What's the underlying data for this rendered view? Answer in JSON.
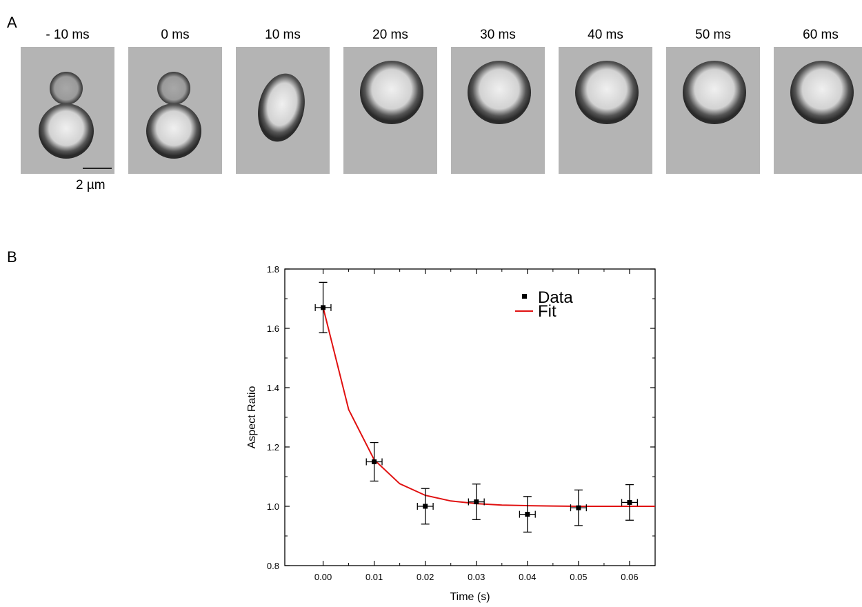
{
  "panels": {
    "a": "A",
    "b": "B"
  },
  "frames": [
    {
      "time": "- 10 ms",
      "state": "doublet"
    },
    {
      "time": "0 ms",
      "state": "doublet"
    },
    {
      "time": "10 ms",
      "state": "elongated"
    },
    {
      "time": "20 ms",
      "state": "sphere"
    },
    {
      "time": "30 ms",
      "state": "sphere"
    },
    {
      "time": "40 ms",
      "state": "sphere"
    },
    {
      "time": "50 ms",
      "state": "sphere"
    },
    {
      "time": "60 ms",
      "state": "sphere"
    }
  ],
  "scale_bar": {
    "label": "2 µm"
  },
  "chart_data": {
    "type": "scatter",
    "xlabel": "Time (s)",
    "ylabel": "Aspect Ratio",
    "xlim": [
      -0.0075,
      0.065
    ],
    "ylim": [
      0.8,
      1.8
    ],
    "x_ticks": [
      "0.00",
      "0.01",
      "0.02",
      "0.03",
      "0.04",
      "0.05",
      "0.06"
    ],
    "y_ticks": [
      "0.8",
      "1.0",
      "1.2",
      "1.4",
      "1.6",
      "1.8"
    ],
    "legend": {
      "position": "top-right",
      "entries": [
        "Data",
        "Fit"
      ]
    },
    "colors": {
      "data": "#000000",
      "fit": "#e01010"
    },
    "series": [
      {
        "name": "Data",
        "type": "scatter",
        "x": [
          0.0,
          0.01,
          0.02,
          0.03,
          0.04,
          0.05,
          0.06
        ],
        "y": [
          1.67,
          1.15,
          1.0,
          1.015,
          0.973,
          0.995,
          1.013
        ],
        "y_err": [
          0.085,
          0.065,
          0.06,
          0.06,
          0.06,
          0.06,
          0.06
        ],
        "x_err": [
          0.001,
          0.001,
          0.001,
          0.001,
          0.001,
          0.001,
          0.001
        ]
      },
      {
        "name": "Fit",
        "type": "line",
        "x": [
          0.0,
          0.005,
          0.01,
          0.015,
          0.02,
          0.025,
          0.03,
          0.035,
          0.04,
          0.045,
          0.05,
          0.055,
          0.06,
          0.065
        ],
        "y": [
          1.67,
          1.326,
          1.157,
          1.076,
          1.037,
          1.018,
          1.009,
          1.004,
          1.002,
          1.001,
          1.0,
          1.0,
          1.0,
          1.0
        ]
      }
    ]
  }
}
